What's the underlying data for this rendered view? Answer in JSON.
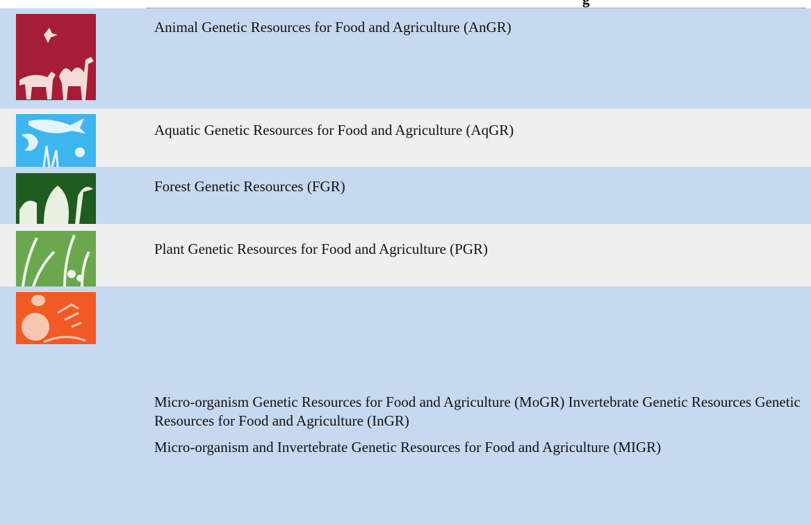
{
  "heading": "g",
  "rows": [
    {
      "paragraphs": [
        "Animal Genetic Resources for Food and Agriculture (AnGR)"
      ]
    },
    {
      "paragraphs": [
        "Aquatic Genetic Resources for Food and Agriculture (AqGR)"
      ]
    },
    {
      "paragraphs": [
        "Forest Genetic Resources (FGR)"
      ]
    },
    {
      "paragraphs": [
        "Plant Genetic Resources for Food and Agriculture (PGR)"
      ]
    },
    {
      "paragraphs": [
        "Micro-organism Genetic Resources for Food and Agriculture (MoGR) Invertebrate Genetic Resources Genetic Resources for Food and Agriculture (InGR)",
        "Micro-organism and Invertebrate Genetic Resources for Food and Agriculture (MIGR)"
      ]
    }
  ]
}
